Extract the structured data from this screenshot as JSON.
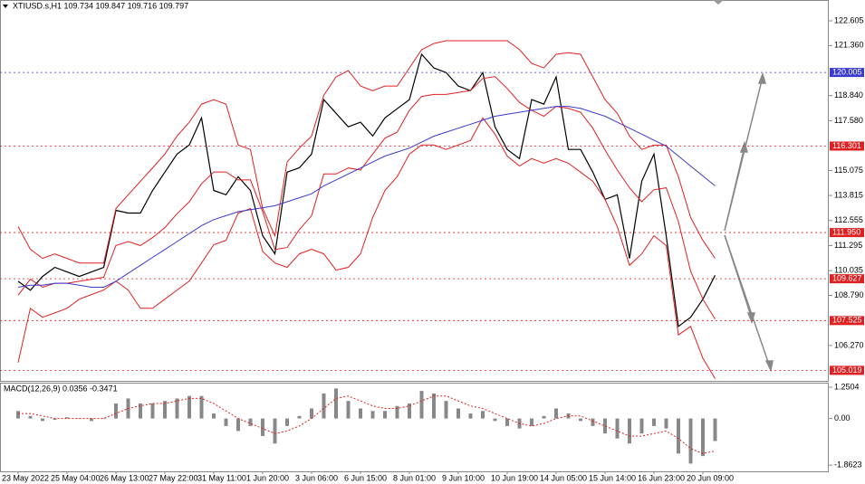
{
  "chart_data": [
    {
      "type": "line",
      "title": "XTIUSD.s,H1  109.734 109.847 109.716 109.797",
      "categories": [
        "23 May 2022",
        null,
        null,
        null,
        "25 May 04:00",
        null,
        null,
        null,
        "26 May 13:00",
        null,
        null,
        null,
        "27 May 22:00",
        null,
        null,
        null,
        "31 May 11:00",
        null,
        null,
        null,
        "1 Jun 20:00",
        null,
        null,
        null,
        "3 Jun 06:00",
        null,
        null,
        null,
        "6 Jun 15:00",
        null,
        null,
        null,
        "8 Jun 01:00",
        null,
        null,
        null,
        "9 Jun 10:00",
        null,
        null,
        null,
        "10 Jun 19:00",
        null,
        null,
        null,
        "14 Jun 05:00",
        null,
        null,
        null,
        "15 Jun 14:00",
        null,
        null,
        null,
        "16 Jun 23:00",
        null,
        null,
        null,
        "20 Jun 09:00",
        null
      ],
      "series": [
        {
          "color": "#000000",
          "values": [
            109.5,
            109.05,
            109.74,
            110.2,
            109.97,
            109.74,
            109.97,
            110.2,
            113.07,
            112.93,
            112.93,
            114.07,
            114.99,
            115.9,
            116.36,
            117.72,
            114.07,
            113.85,
            114.76,
            114.07,
            111.79,
            110.88,
            114.99,
            115.21,
            115.9,
            118.64,
            117.95,
            117.27,
            117.5,
            116.81,
            117.72,
            118.18,
            118.64,
            120.92,
            120.23,
            120.0,
            119.32,
            119.09,
            120.0,
            117.27,
            116.13,
            115.67,
            118.64,
            118.41,
            119.78,
            116.13,
            116.13,
            114.99,
            113.62,
            113.85,
            110.65,
            114.53,
            115.9,
            111.79,
            107.23,
            107.69,
            108.6,
            109.8
          ]
        },
        {
          "color": "#e02020",
          "values": [
            112.25,
            111.11,
            110.65,
            110.88,
            110.65,
            110.42,
            110.42,
            110.42,
            113.16,
            113.85,
            114.53,
            115.21,
            115.9,
            116.81,
            117.5,
            118.41,
            118.64,
            118.41,
            116.35,
            116.13,
            113.16,
            111.79,
            115.5,
            116.2,
            116.8,
            118.86,
            119.78,
            120.1,
            119.32,
            119.09,
            119.32,
            119.32,
            120.23,
            121.15,
            121.46,
            121.6,
            121.6,
            121.6,
            121.6,
            121.6,
            121.6,
            121.15,
            120.46,
            120.23,
            120.92,
            121.0,
            120.92,
            119.78,
            118.64,
            117.95,
            116.81,
            116.13,
            116.35,
            116.35,
            114.76,
            112.71,
            111.56,
            110.65
          ]
        },
        {
          "color": "#e02020",
          "values": [
            108.8,
            109.6,
            109.2,
            109.4,
            109.4,
            109.5,
            109.6,
            109.7,
            111.3,
            111.5,
            111.3,
            111.7,
            112.2,
            112.9,
            113.5,
            114.4,
            115.0,
            115.0,
            114.6,
            114.6,
            113.0,
            111.1,
            111.2,
            112.1,
            112.8,
            114.9,
            114.9,
            115.2,
            115.1,
            115.9,
            116.7,
            117.0,
            118.1,
            118.8,
            118.9,
            118.9,
            119.0,
            119.1,
            119.7,
            119.8,
            119.2,
            118.5,
            118.1,
            117.8,
            118.3,
            118.2,
            118.0,
            117.2,
            116.1,
            115.1,
            114.2,
            113.5,
            114.1,
            114.2,
            112.5,
            110.0,
            108.6,
            107.6
          ]
        },
        {
          "color": "#e02020",
          "values": [
            105.41,
            108.14,
            107.69,
            107.91,
            108.14,
            108.6,
            108.83,
            109.06,
            109.51,
            109.06,
            108.14,
            108.14,
            108.6,
            109.06,
            109.51,
            110.42,
            111.34,
            111.56,
            112.93,
            113.16,
            111.0,
            110.42,
            110.2,
            110.88,
            111.11,
            110.88,
            110.06,
            110.2,
            110.88,
            112.71,
            114.07,
            114.76,
            115.9,
            116.36,
            116.36,
            116.13,
            116.36,
            116.58,
            117.72,
            116.9,
            115.8,
            115.3,
            115.67,
            115.44,
            115.67,
            115.44,
            114.99,
            114.53,
            113.62,
            112.25,
            110.3,
            110.88,
            111.79,
            111.3,
            106.8,
            107.23,
            105.63,
            104.6
          ]
        },
        {
          "color": "#3a3ad0",
          "values": [
            109.2,
            109.3,
            109.3,
            109.4,
            109.4,
            109.3,
            109.2,
            109.2,
            109.5,
            109.9,
            110.3,
            110.7,
            111.1,
            111.5,
            111.9,
            112.3,
            112.6,
            112.8,
            113.0,
            113.1,
            113.2,
            113.3,
            113.5,
            113.7,
            113.9,
            114.3,
            114.6,
            114.9,
            115.2,
            115.5,
            115.8,
            116.0,
            116.2,
            116.5,
            116.8,
            117.0,
            117.2,
            117.4,
            117.6,
            117.8,
            117.9,
            118.0,
            118.1,
            118.2,
            118.3,
            118.3,
            118.2,
            118.0,
            117.8,
            117.5,
            117.2,
            116.9,
            116.6,
            116.3,
            115.8,
            115.3,
            114.8,
            114.3
          ]
        }
      ],
      "ylim": [
        104.49,
        123.65
      ],
      "yticks": [
        122.605,
        {
          "value": 121.36,
          "label": "121.360"
        },
        {
          "value": 118.84,
          "label": "118.840"
        },
        {
          "value": 117.58,
          "label": "117.580"
        },
        115.075,
        113.815,
        112.555,
        111.295,
        110.035,
        {
          "value": 108.79,
          "label": "108.790"
        },
        {
          "value": 106.27,
          "label": "106.270"
        }
      ],
      "levels": [
        {
          "value": 120.005,
          "color": "#3a3ad0"
        },
        {
          "value": 116.301,
          "color": "#e02020"
        },
        {
          "value": 111.95,
          "label": "111.950",
          "color": "#e02020"
        },
        {
          "value": 109.627,
          "color": "#e02020"
        },
        {
          "value": 107.525,
          "color": "#e02020"
        },
        {
          "value": 105.019,
          "color": "#e02020"
        }
      ]
    },
    {
      "type": "bar",
      "title": "MACD(12,26,9) 0.0356 -0.3471",
      "series": [
        {
          "color": "#888888",
          "values": [
            0.3,
            0.1,
            -0.1,
            -0.05,
            0.05,
            0,
            -0.1,
            0,
            0.6,
            0.8,
            0.6,
            0.6,
            0.7,
            0.8,
            0.9,
            0.9,
            0.2,
            -0.3,
            -0.5,
            -0.3,
            -0.7,
            -1.0,
            -0.3,
            0.1,
            0.4,
            1.0,
            1.2,
            0.7,
            0.4,
            0.3,
            0.3,
            0.5,
            0.6,
            1.1,
            1.0,
            0.7,
            0.4,
            0.2,
            0.3,
            -0.1,
            -0.3,
            -0.4,
            -0.3,
            0.1,
            0.4,
            0.2,
            -0.1,
            -0.3,
            -0.6,
            -0.8,
            -1.0,
            -0.6,
            -0.3,
            -0.4,
            -1.4,
            -1.8,
            -1.5,
            -0.9
          ]
        },
        {
          "color": "#e02020",
          "style": "dotted",
          "values": [
            0.2,
            0.2,
            0.1,
            0,
            0,
            0,
            0,
            0,
            0.2,
            0.4,
            0.5,
            0.6,
            0.6,
            0.7,
            0.8,
            0.8,
            0.6,
            0.3,
            0,
            -0.2,
            -0.4,
            -0.6,
            -0.5,
            -0.3,
            0,
            0.4,
            0.8,
            0.9,
            0.7,
            0.5,
            0.4,
            0.4,
            0.5,
            0.7,
            0.9,
            0.9,
            0.7,
            0.5,
            0.4,
            0.2,
            0,
            -0.2,
            -0.3,
            -0.2,
            0,
            0.1,
            0.1,
            -0.1,
            -0.3,
            -0.5,
            -0.7,
            -0.7,
            -0.6,
            -0.5,
            -0.8,
            -1.2,
            -1.4,
            -1.3
          ]
        }
      ],
      "ylim": [
        -2.11,
        1.43
      ],
      "yticks": [
        1.2504,
        {
          "value": 0,
          "label": "0.00"
        },
        -1.8623
      ]
    }
  ]
}
